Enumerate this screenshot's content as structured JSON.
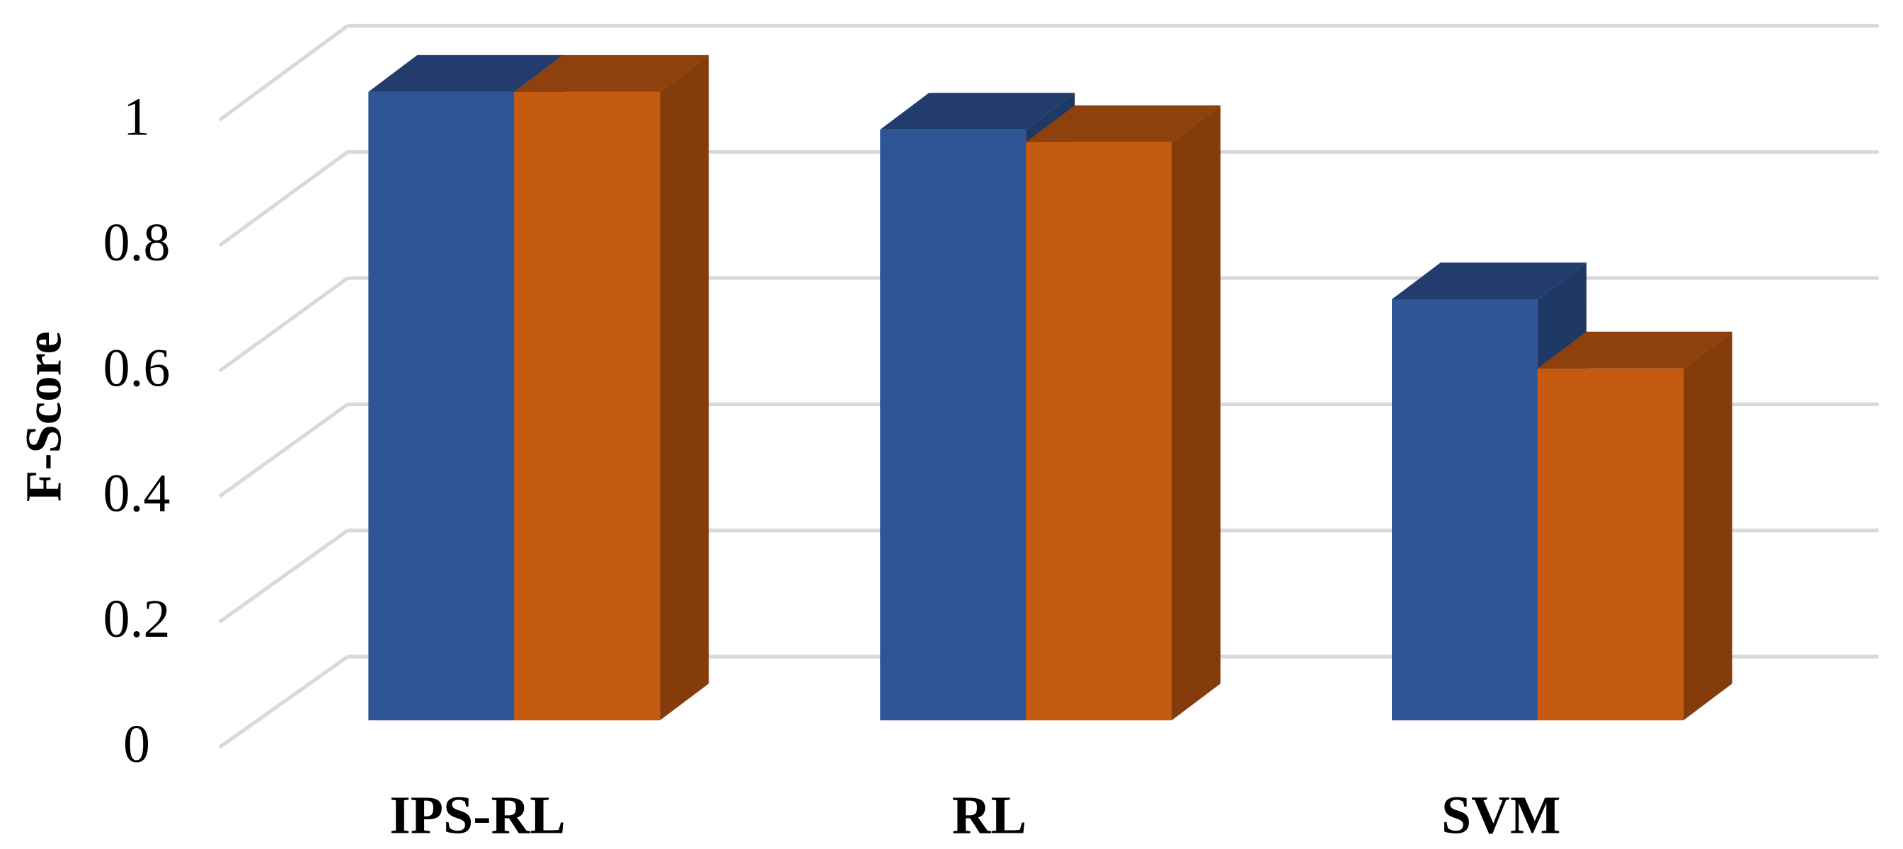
{
  "chart_data": {
    "type": "bar3d",
    "y_label": "F-Score",
    "categories": [
      "IPS-RL",
      "RL",
      "SVM"
    ],
    "series": [
      {
        "color": "#2f5597",
        "values": [
          1.0,
          0.94,
          0.67
        ]
      },
      {
        "color": "#c55a11",
        "values": [
          1.0,
          0.92,
          0.56
        ]
      }
    ],
    "ylim": [
      0,
      1
    ],
    "yticks": [
      0,
      0.2,
      0.4,
      0.6,
      0.8,
      1
    ],
    "grid": true
  }
}
